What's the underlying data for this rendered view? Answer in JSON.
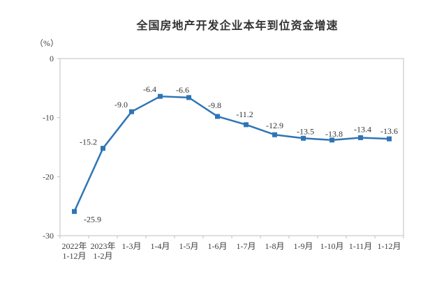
{
  "chart_data": {
    "type": "line",
    "title": "全国房地产开发企业本年到位资金增速",
    "unit_label": "（%）",
    "categories": [
      [
        "2022年",
        "1-12月"
      ],
      [
        "2023年",
        "1-2月"
      ],
      [
        "1-3月"
      ],
      [
        "1-4月"
      ],
      [
        "1-5月"
      ],
      [
        "1-6月"
      ],
      [
        "1-7月"
      ],
      [
        "1-8月"
      ],
      [
        "1-9月"
      ],
      [
        "1-10月"
      ],
      [
        "1-11月"
      ],
      [
        "1-12月"
      ]
    ],
    "values": [
      -25.9,
      -15.2,
      -9.0,
      -6.4,
      -6.6,
      -9.8,
      -11.2,
      -12.9,
      -13.5,
      -13.8,
      -13.4,
      -13.6
    ],
    "data_labels": [
      "-25.9",
      "-15.2",
      "-9.0",
      "-6.4",
      "-6.6",
      "-9.8",
      "-11.2",
      "-12.9",
      "-13.5",
      "-13.8",
      "-13.4",
      "-13.6"
    ],
    "y_ticks": [
      "0",
      "-10",
      "-20",
      "-30"
    ],
    "ylim": [
      -30,
      0
    ],
    "grid": false,
    "legend": null,
    "marker": "square",
    "line_color": "#2E75B6",
    "axis_color": "#BFBFBF",
    "text_color": "#404040",
    "label_color": "#333333"
  }
}
